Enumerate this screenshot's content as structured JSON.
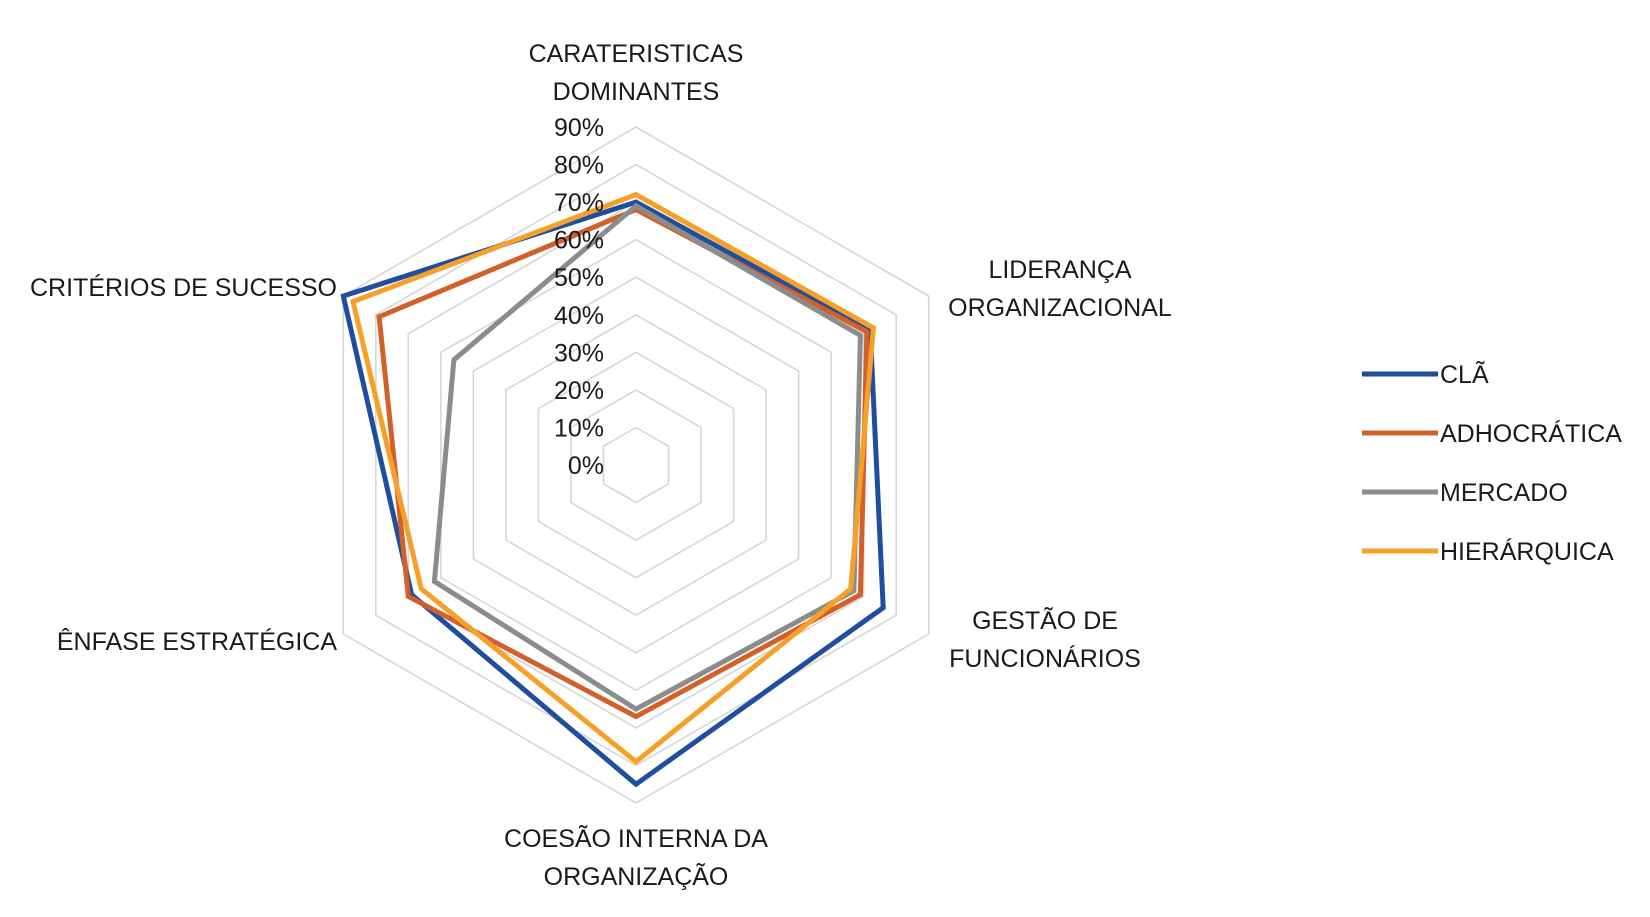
{
  "chart_data": {
    "type": "radar",
    "axes": [
      [
        "CARATERISTICAS",
        "DOMINANTES"
      ],
      [
        "LIDERANÇA",
        "ORGANIZACIONAL"
      ],
      [
        "GESTÃO DE",
        "FUNCIONÁRIOS"
      ],
      [
        "COESÃO INTERNA DA",
        "ORGANIZAÇÃO"
      ],
      [
        "ÊNFASE ESTRATÉGICA"
      ],
      [
        "CRITÉRIOS DE SUCESSO"
      ]
    ],
    "ticks": [
      "0%",
      "10%",
      "20%",
      "30%",
      "40%",
      "50%",
      "60%",
      "70%",
      "80%",
      "90%"
    ],
    "rlim": [
      0,
      90
    ],
    "unit": "%",
    "grid": true,
    "legend_position": "right",
    "series": [
      {
        "name": "CLÃ",
        "color": "#1f4e9e",
        "values": [
          70,
          72,
          76,
          85,
          69,
          90
        ]
      },
      {
        "name": "ADHOCRÁTICA",
        "color": "#d2602a",
        "values": [
          68,
          71,
          69,
          67,
          70,
          79
        ]
      },
      {
        "name": "MERCADO",
        "color": "#8c8c8c",
        "values": [
          69,
          69,
          67,
          65,
          62,
          56
        ]
      },
      {
        "name": "HIERÁRQUICA",
        "color": "#f6a02a",
        "values": [
          72,
          73,
          66,
          79,
          66,
          87
        ]
      }
    ]
  }
}
